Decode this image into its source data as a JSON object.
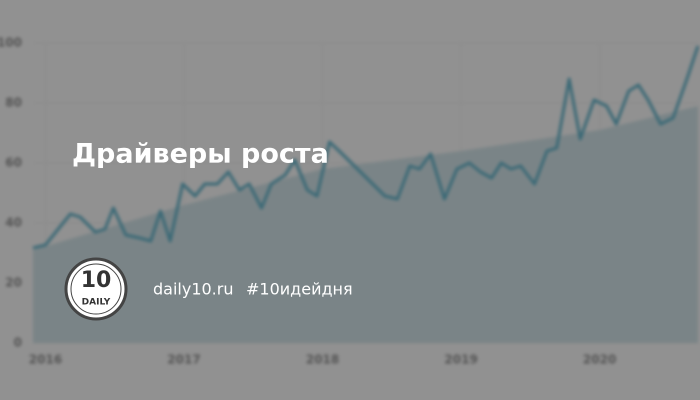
{
  "chart_data": {
    "type": "line",
    "xlim": [
      2015.91,
      2020.71
    ],
    "xticks": [
      2016,
      2017,
      2018,
      2019,
      2020
    ],
    "ylim": [
      0,
      100
    ],
    "yticks": [
      0,
      20,
      40,
      60,
      80,
      100
    ],
    "grid": true,
    "series": [
      {
        "type": "area",
        "color": "#c6dfe6",
        "x": [
          2015.91,
          2017,
          2018,
          2019,
          2020,
          2020.71
        ],
        "values": [
          31,
          46,
          58,
          64,
          71,
          79
        ]
      },
      {
        "type": "line",
        "color": "#2a9cbc",
        "x": [
          2015.91,
          2016.0,
          2016.11,
          2016.18,
          2016.25,
          2016.36,
          2016.43,
          2016.49,
          2016.58,
          2016.68,
          2016.76,
          2016.83,
          2016.9,
          2016.99,
          2017.08,
          2017.15,
          2017.24,
          2017.32,
          2017.4,
          2017.47,
          2017.56,
          2017.63,
          2017.73,
          2017.8,
          2017.89,
          2017.96,
          2018.05,
          2018.12,
          2018.23,
          2018.34,
          2018.45,
          2018.54,
          2018.63,
          2018.7,
          2018.78,
          2018.88,
          2018.97,
          2019.06,
          2019.14,
          2019.22,
          2019.29,
          2019.36,
          2019.43,
          2019.53,
          2019.62,
          2019.69,
          2019.78,
          2019.86,
          2019.96,
          2020.05,
          2020.12,
          2020.21,
          2020.28,
          2020.35,
          2020.44,
          2020.53,
          2020.63,
          2020.71
        ],
        "values": [
          31.7,
          32.7,
          39,
          43,
          42,
          37,
          38,
          45,
          36,
          35,
          34,
          44,
          34,
          53,
          49,
          53,
          53,
          57,
          51,
          53,
          45,
          53,
          56,
          61,
          51,
          49,
          67,
          64,
          59,
          54,
          49,
          48,
          59,
          58,
          63,
          48,
          58,
          60,
          57,
          55,
          60,
          58,
          59,
          53,
          64,
          65,
          88,
          68,
          81,
          79,
          73,
          84,
          86,
          81,
          73,
          75,
          88,
          99
        ]
      }
    ]
  },
  "title": "Драйверы роста",
  "logo": {
    "number": "10",
    "word": "DAILY"
  },
  "site": "daily10.ru",
  "hashtag": "#10идейдня"
}
